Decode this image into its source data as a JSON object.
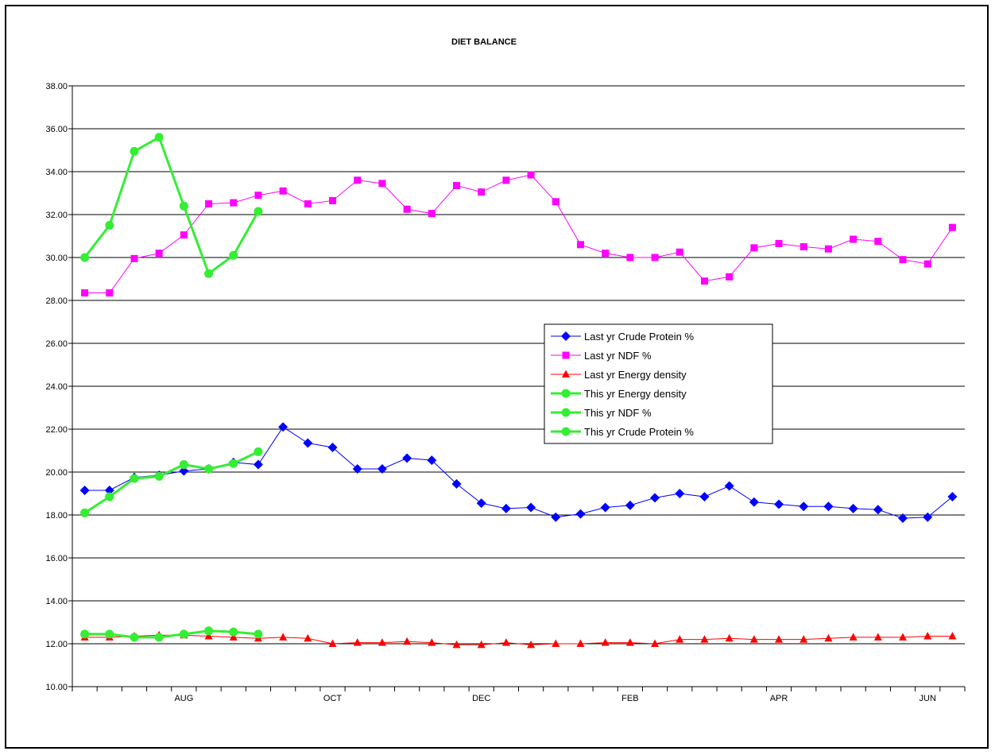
{
  "chart_data": {
    "type": "line",
    "title": "DIET BALANCE",
    "xlabel": "",
    "ylabel": "",
    "ylim": [
      10,
      38
    ],
    "y_ticks": [
      "10.00",
      "12.00",
      "14.00",
      "16.00",
      "18.00",
      "20.00",
      "22.00",
      "24.00",
      "26.00",
      "28.00",
      "30.00",
      "32.00",
      "34.00",
      "36.00",
      "38.00"
    ],
    "x_count": 36,
    "x_tick_labels": [
      {
        "index": 4,
        "label": "AUG"
      },
      {
        "index": 10,
        "label": "OCT"
      },
      {
        "index": 16,
        "label": "DEC"
      },
      {
        "index": 22,
        "label": "FEB"
      },
      {
        "index": 28,
        "label": "APR"
      },
      {
        "index": 34,
        "label": "JUN"
      }
    ],
    "grid": "horizontal",
    "legend_position": "center-right",
    "series": [
      {
        "name": "Last yr Crude Protein %",
        "color": "#0000ff",
        "marker": "diamond",
        "values": [
          19.15,
          19.15,
          19.75,
          19.85,
          20.05,
          20.15,
          20.45,
          20.35,
          22.1,
          21.35,
          21.15,
          20.15,
          20.15,
          20.65,
          20.55,
          19.45,
          18.55,
          18.3,
          18.35,
          17.9,
          18.05,
          18.35,
          18.45,
          18.8,
          19.0,
          18.85,
          19.35,
          18.6,
          18.5,
          18.4,
          18.4,
          18.3,
          18.25,
          17.85,
          17.9,
          18.85
        ]
      },
      {
        "name": "Last yr NDF %",
        "color": "#ff00ff",
        "marker": "square",
        "values": [
          28.35,
          28.35,
          29.95,
          30.2,
          31.05,
          32.5,
          32.55,
          32.9,
          33.1,
          32.5,
          32.65,
          33.6,
          33.45,
          32.25,
          32.05,
          33.35,
          33.05,
          33.6,
          33.85,
          32.6,
          30.6,
          30.2,
          30.0,
          30.0,
          30.25,
          28.9,
          29.1,
          30.45,
          30.65,
          30.5,
          30.4,
          30.85,
          30.75,
          29.9,
          29.7,
          31.4
        ]
      },
      {
        "name": "Last yr Energy density",
        "color": "#ff0000",
        "marker": "triangle",
        "values": [
          12.3,
          12.3,
          12.35,
          12.4,
          12.4,
          12.35,
          12.3,
          12.25,
          12.3,
          12.25,
          12.0,
          12.05,
          12.05,
          12.1,
          12.05,
          11.95,
          11.95,
          12.05,
          11.95,
          12.0,
          12.0,
          12.05,
          12.05,
          12.0,
          12.2,
          12.2,
          12.25,
          12.2,
          12.2,
          12.2,
          12.25,
          12.3,
          12.3,
          12.3,
          12.35,
          12.35
        ]
      },
      {
        "name": "This yr Energy density",
        "color": "#33ee33",
        "marker": "circle",
        "values": [
          12.45,
          12.45,
          12.3,
          12.3,
          12.45,
          12.6,
          12.55,
          12.45
        ]
      },
      {
        "name": "This yr NDF %",
        "color": "#33ee33",
        "marker": "circle",
        "values": [
          30.0,
          31.5,
          34.95,
          35.6,
          32.4,
          29.25,
          30.1,
          32.15
        ]
      },
      {
        "name": "This yr Crude Protein %",
        "color": "#33ee33",
        "marker": "circle",
        "values": [
          18.1,
          18.85,
          19.7,
          19.8,
          20.35,
          20.15,
          20.4,
          20.95
        ]
      }
    ]
  }
}
